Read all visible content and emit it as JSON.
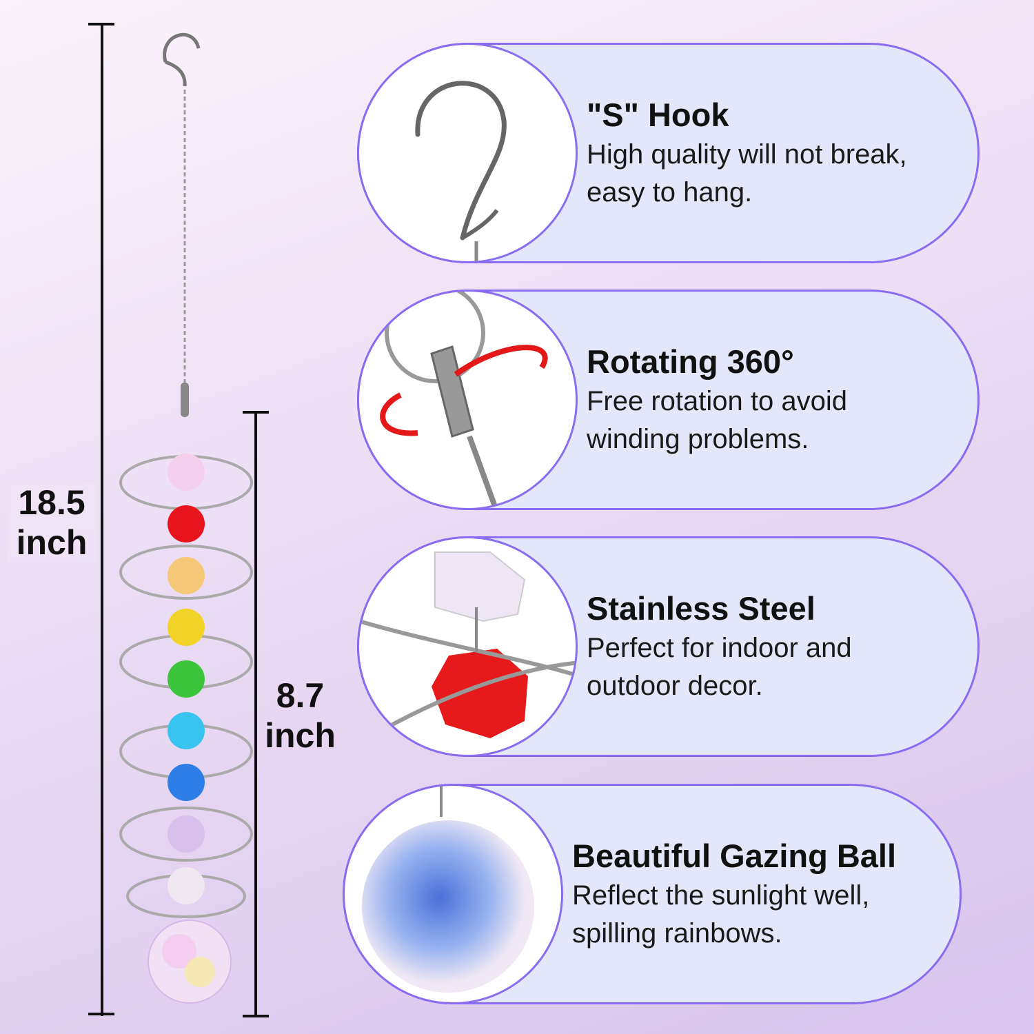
{
  "dimensions": {
    "total": {
      "value": "18.5",
      "unit": "inch"
    },
    "spiral": {
      "value": "8.7",
      "unit": "inch"
    }
  },
  "colors": {
    "border": "#8a6cf0",
    "card_fill": "#e4e6fa",
    "crystals": [
      "#f4d0ec",
      "#e8141c",
      "#f5c878",
      "#f2d428",
      "#3cc43a",
      "#38c4ee",
      "#2e7ee8",
      "#d8c0ec",
      "#f0e8f0"
    ]
  },
  "features": [
    {
      "icon": "s-hook-icon",
      "title": "\"S\" Hook",
      "lines": [
        "High quality will not break,",
        "easy to hang."
      ]
    },
    {
      "icon": "swivel-rotate-icon",
      "title": "Rotating 360°",
      "lines": [
        "Free rotation to avoid",
        "winding problems."
      ]
    },
    {
      "icon": "steel-spiral-icon",
      "title": "Stainless Steel",
      "lines": [
        "Perfect for indoor and",
        "outdoor decor."
      ]
    },
    {
      "icon": "gazing-ball-icon",
      "title": "Beautiful Gazing Ball",
      "lines": [
        "Reflect the sunlight well,",
        "spilling rainbows."
      ]
    }
  ]
}
